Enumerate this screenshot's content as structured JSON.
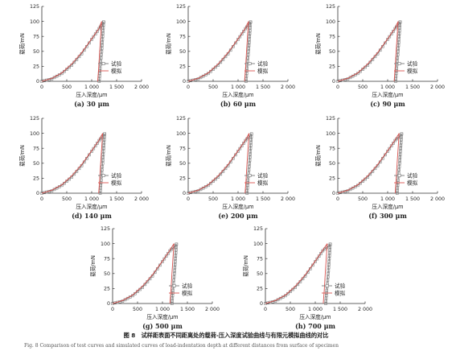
{
  "chart_data": [
    {
      "type": "line",
      "caption": "(a) 30 μm",
      "xlabel": "压入深度/μm",
      "ylabel": "载荷/mN",
      "xlim": [
        0,
        2000
      ],
      "ylim": [
        0,
        125
      ],
      "xticks": [
        "0",
        "500",
        "1 000",
        "1 500",
        "2 000"
      ],
      "yticks": [
        "0",
        "25",
        "50",
        "75",
        "100",
        "125"
      ],
      "legend": {
        "position": "bottom-right",
        "entries": [
          "试验",
          "模拟"
        ]
      },
      "series": [
        {
          "name": "试验",
          "marker": "square",
          "loading": {
            "x": [
              0,
              200,
              400,
              600,
              800,
              1000,
              1150,
              1240
            ],
            "y": [
              0,
              4,
              13,
              27,
              46,
              70,
              88,
              99
            ]
          },
          "unloading": {
            "x": [
              1240,
              1220,
              1200,
              1170,
              1150
            ],
            "y": [
              99,
              75,
              50,
              22,
              0
            ]
          }
        },
        {
          "name": "模拟",
          "loading": {
            "x": [
              0,
              200,
              400,
              600,
              800,
              1000,
              1150,
              1200
            ],
            "y": [
              0,
              5,
              14,
              29,
              48,
              71,
              89,
              100
            ]
          },
          "unloading": {
            "x": [
              1200,
              1180,
              1160,
              1140,
              1120
            ],
            "y": [
              100,
              75,
              50,
              22,
              0
            ]
          }
        }
      ]
    },
    {
      "type": "line",
      "caption": "(b) 60 μm",
      "xlabel": "压入深度/μm",
      "ylabel": "载荷/mN",
      "xlim": [
        0,
        2000
      ],
      "ylim": [
        0,
        125
      ],
      "xticks": [
        "0",
        "500",
        "1 000",
        "1 500",
        "2 000"
      ],
      "yticks": [
        "0",
        "25",
        "50",
        "75",
        "100",
        "125"
      ],
      "legend": {
        "position": "bottom-right",
        "entries": [
          "试验",
          "模拟"
        ]
      },
      "series": [
        {
          "name": "试验",
          "marker": "square",
          "loading": {
            "x": [
              0,
              200,
              400,
              600,
              800,
              1000,
              1150,
              1250
            ],
            "y": [
              0,
              4,
              13,
              27,
              46,
              70,
              88,
              99
            ]
          },
          "unloading": {
            "x": [
              1250,
              1230,
              1210,
              1180,
              1160
            ],
            "y": [
              99,
              75,
              50,
              22,
              0
            ]
          }
        },
        {
          "name": "模拟",
          "loading": {
            "x": [
              0,
              200,
              400,
              600,
              800,
              1000,
              1150,
              1210
            ],
            "y": [
              0,
              5,
              14,
              29,
              48,
              71,
              89,
              100
            ]
          },
          "unloading": {
            "x": [
              1210,
              1190,
              1170,
              1150,
              1130
            ],
            "y": [
              100,
              75,
              50,
              22,
              0
            ]
          }
        }
      ]
    },
    {
      "type": "line",
      "caption": "(c) 90 μm",
      "xlabel": "压入深度/μm",
      "ylabel": "载荷/mN",
      "xlim": [
        0,
        2000
      ],
      "ylim": [
        0,
        125
      ],
      "xticks": [
        "0",
        "500",
        "1 000",
        "1 500",
        "2 000"
      ],
      "yticks": [
        "0",
        "25",
        "50",
        "75",
        "100",
        "125"
      ],
      "legend": {
        "position": "bottom-right",
        "entries": [
          "试验",
          "模拟"
        ]
      },
      "series": [
        {
          "name": "试验",
          "marker": "square",
          "loading": {
            "x": [
              0,
              200,
              400,
              600,
              800,
              1000,
              1150,
              1250
            ],
            "y": [
              0,
              4,
              13,
              27,
              46,
              70,
              88,
              99
            ]
          },
          "unloading": {
            "x": [
              1250,
              1230,
              1210,
              1180,
              1160
            ],
            "y": [
              99,
              75,
              50,
              22,
              0
            ]
          }
        },
        {
          "name": "模拟",
          "loading": {
            "x": [
              0,
              200,
              400,
              600,
              800,
              1000,
              1150,
              1210
            ],
            "y": [
              0,
              5,
              14,
              29,
              48,
              71,
              89,
              100
            ]
          },
          "unloading": {
            "x": [
              1210,
              1190,
              1170,
              1150,
              1130
            ],
            "y": [
              100,
              75,
              50,
              22,
              0
            ]
          }
        }
      ]
    },
    {
      "type": "line",
      "caption": "(d) 140 μm",
      "xlabel": "压入深度/μm",
      "ylabel": "载荷/mN",
      "xlim": [
        0,
        2000
      ],
      "ylim": [
        0,
        125
      ],
      "xticks": [
        "0",
        "500",
        "1 000",
        "1 500",
        "2 000"
      ],
      "yticks": [
        "0",
        "25",
        "50",
        "75",
        "100",
        "125"
      ],
      "legend": {
        "position": "bottom-right",
        "entries": [
          "试验",
          "模拟"
        ]
      },
      "series": [
        {
          "name": "试验",
          "marker": "square",
          "loading": {
            "x": [
              0,
              200,
              400,
              600,
              800,
              1000,
              1150,
              1260
            ],
            "y": [
              0,
              4,
              13,
              27,
              46,
              70,
              88,
              99
            ]
          },
          "unloading": {
            "x": [
              1260,
              1240,
              1220,
              1190,
              1170
            ],
            "y": [
              99,
              75,
              50,
              22,
              0
            ]
          }
        },
        {
          "name": "模拟",
          "loading": {
            "x": [
              0,
              200,
              400,
              600,
              800,
              1000,
              1150,
              1220
            ],
            "y": [
              0,
              5,
              14,
              29,
              48,
              71,
              89,
              100
            ]
          },
          "unloading": {
            "x": [
              1220,
              1200,
              1180,
              1160,
              1140
            ],
            "y": [
              100,
              75,
              50,
              22,
              0
            ]
          }
        }
      ]
    },
    {
      "type": "line",
      "caption": "(e) 200 μm",
      "xlabel": "压入深度/μm",
      "ylabel": "载荷/mN",
      "xlim": [
        0,
        2000
      ],
      "ylim": [
        0,
        125
      ],
      "xticks": [
        "0",
        "500",
        "1 000",
        "1 500",
        "2 000"
      ],
      "yticks": [
        "0",
        "25",
        "50",
        "75",
        "100",
        "125"
      ],
      "legend": {
        "position": "bottom-right",
        "entries": [
          "试验",
          "模拟"
        ]
      },
      "series": [
        {
          "name": "试验",
          "marker": "square",
          "loading": {
            "x": [
              0,
              200,
              400,
              600,
              800,
              1000,
              1150,
              1270
            ],
            "y": [
              0,
              4,
              13,
              27,
              46,
              70,
              88,
              99
            ]
          },
          "unloading": {
            "x": [
              1270,
              1250,
              1230,
              1200,
              1180
            ],
            "y": [
              99,
              75,
              50,
              22,
              0
            ]
          }
        },
        {
          "name": "模拟",
          "loading": {
            "x": [
              0,
              200,
              400,
              600,
              800,
              1000,
              1150,
              1220
            ],
            "y": [
              0,
              5,
              14,
              29,
              48,
              71,
              89,
              100
            ]
          },
          "unloading": {
            "x": [
              1220,
              1200,
              1180,
              1160,
              1140
            ],
            "y": [
              100,
              75,
              50,
              22,
              0
            ]
          }
        }
      ]
    },
    {
      "type": "line",
      "caption": "(f) 300 μm",
      "xlabel": "压入深度/μm",
      "ylabel": "载荷/mN",
      "xlim": [
        0,
        2000
      ],
      "ylim": [
        0,
        125
      ],
      "xticks": [
        "0",
        "500",
        "1 000",
        "1 500",
        "2 000"
      ],
      "yticks": [
        "0",
        "25",
        "50",
        "75",
        "100",
        "125"
      ],
      "legend": {
        "position": "bottom-right",
        "entries": [
          "试验",
          "模拟"
        ]
      },
      "series": [
        {
          "name": "试验",
          "marker": "square",
          "loading": {
            "x": [
              0,
              200,
              400,
              600,
              800,
              1000,
              1150,
              1280
            ],
            "y": [
              0,
              4,
              13,
              27,
              46,
              70,
              88,
              99
            ]
          },
          "unloading": {
            "x": [
              1280,
              1260,
              1240,
              1210,
              1190
            ],
            "y": [
              99,
              75,
              50,
              22,
              0
            ]
          }
        },
        {
          "name": "模拟",
          "loading": {
            "x": [
              0,
              200,
              400,
              600,
              800,
              1000,
              1150,
              1230
            ],
            "y": [
              0,
              5,
              14,
              29,
              48,
              71,
              89,
              100
            ]
          },
          "unloading": {
            "x": [
              1230,
              1210,
              1190,
              1170,
              1150
            ],
            "y": [
              100,
              75,
              50,
              22,
              0
            ]
          }
        }
      ]
    },
    {
      "type": "line",
      "caption": "(g) 500 μm",
      "xlabel": "压入深度/μm",
      "ylabel": "载荷/mN",
      "xlim": [
        0,
        2000
      ],
      "ylim": [
        0,
        125
      ],
      "xticks": [
        "0",
        "500",
        "1 000",
        "1 500",
        "2 000"
      ],
      "yticks": [
        "0",
        "25",
        "50",
        "75",
        "100",
        "125"
      ],
      "legend": {
        "position": "bottom-right",
        "entries": [
          "试验",
          "模拟"
        ]
      },
      "series": [
        {
          "name": "试验",
          "marker": "square",
          "loading": {
            "x": [
              0,
              200,
              400,
              600,
              800,
              1000,
              1150,
              1280
            ],
            "y": [
              0,
              4,
              13,
              27,
              46,
              70,
              88,
              99
            ]
          },
          "unloading": {
            "x": [
              1280,
              1260,
              1240,
              1210,
              1190
            ],
            "y": [
              99,
              75,
              50,
              22,
              0
            ]
          }
        },
        {
          "name": "模拟",
          "loading": {
            "x": [
              0,
              200,
              400,
              600,
              800,
              1000,
              1150,
              1230
            ],
            "y": [
              0,
              5,
              14,
              29,
              48,
              71,
              89,
              100
            ]
          },
          "unloading": {
            "x": [
              1230,
              1210,
              1190,
              1170,
              1150
            ],
            "y": [
              100,
              75,
              50,
              22,
              0
            ]
          }
        }
      ]
    },
    {
      "type": "line",
      "caption": "(h) 700 μm",
      "xlabel": "压入深度/μm",
      "ylabel": "载荷/mN",
      "xlim": [
        0,
        2000
      ],
      "ylim": [
        0,
        125
      ],
      "xticks": [
        "0",
        "500",
        "1 000",
        "1 500",
        "2 000"
      ],
      "yticks": [
        "0",
        "25",
        "50",
        "75",
        "100",
        "125"
      ],
      "legend": {
        "position": "bottom-right",
        "entries": [
          "试验",
          "模拟"
        ]
      },
      "series": [
        {
          "name": "试验",
          "marker": "square",
          "loading": {
            "x": [
              0,
              200,
              400,
              600,
              800,
              1000,
              1150,
              1300
            ],
            "y": [
              0,
              4,
              13,
              27,
              46,
              70,
              88,
              99
            ]
          },
          "unloading": {
            "x": [
              1300,
              1280,
              1260,
              1230,
              1210
            ],
            "y": [
              99,
              75,
              50,
              22,
              0
            ]
          }
        },
        {
          "name": "模拟",
          "loading": {
            "x": [
              0,
              200,
              400,
              600,
              800,
              1000,
              1150,
              1240
            ],
            "y": [
              0,
              5,
              14,
              29,
              48,
              71,
              89,
              100
            ]
          },
          "unloading": {
            "x": [
              1240,
              1220,
              1200,
              1180,
              1160
            ],
            "y": [
              100,
              75,
              50,
              22,
              0
            ]
          }
        }
      ]
    }
  ],
  "figure": {
    "caption": "图 8　试样距表面不同距离处的载荷-压入深度试验曲线与有限元模拟曲线的对比",
    "subcaption": "Fig. 8  Comparison of test curves and simulated curves of load-indentation depth at different distances from surface of specimen"
  },
  "colors": {
    "experiment": "#777777",
    "simulation": "#d9534f",
    "axis": "#333333"
  }
}
